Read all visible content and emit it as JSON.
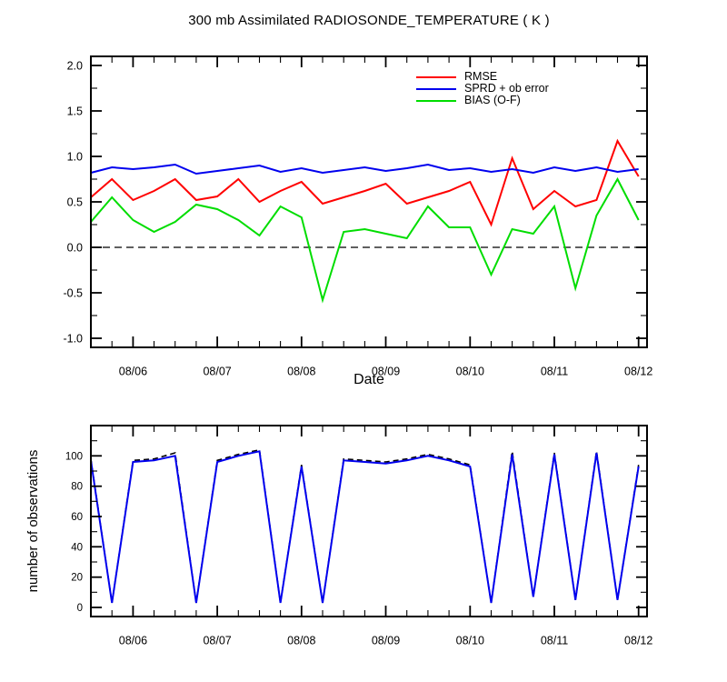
{
  "chart_data": [
    {
      "type": "line",
      "title": "300 mb Assimilated RADIOSONDE_TEMPERATURE ( K )",
      "xlabel": "Date",
      "ylabel": "",
      "xlim": [
        5.5,
        12.1
      ],
      "ylim": [
        -1.1,
        2.1
      ],
      "x_tick_values": [
        6,
        7,
        8,
        9,
        10,
        11,
        12
      ],
      "x_tick_labels": [
        "08/06",
        "08/07",
        "08/08",
        "08/09",
        "08/10",
        "08/11",
        "08/12"
      ],
      "x_minor_step": 0.25,
      "y_tick_values": [
        2.0,
        1.5,
        1.0,
        0.5,
        0.0,
        -0.5,
        -1.0
      ],
      "y_tick_labels": [
        "2.0",
        "1.5",
        "1.0",
        "0.5",
        "0.0",
        "-0.5",
        "-1.0"
      ],
      "y_minor_step": 0.25,
      "refline": 0.0,
      "legend_position": "top-right-inside",
      "x": [
        5.5,
        5.75,
        6,
        6.25,
        6.5,
        6.75,
        7,
        7.25,
        7.5,
        7.75,
        8,
        8.25,
        8.5,
        8.75,
        9,
        9.25,
        9.5,
        9.75,
        10,
        10.25,
        10.5,
        10.75,
        11,
        11.25,
        11.5,
        11.75,
        12
      ],
      "series": [
        {
          "name": "RMSE",
          "color": "#ff0000",
          "style": "solid",
          "values": [
            0.55,
            0.75,
            0.52,
            0.62,
            0.75,
            0.52,
            0.56,
            0.75,
            0.5,
            0.62,
            0.72,
            0.48,
            0.55,
            0.62,
            0.7,
            0.48,
            0.55,
            0.62,
            0.72,
            0.25,
            0.98,
            0.42,
            0.62,
            0.45,
            0.52,
            1.17,
            0.78
          ]
        },
        {
          "name": "SPRD + ob error",
          "color": "#0000ee",
          "style": "solid",
          "values": [
            0.82,
            0.88,
            0.86,
            0.88,
            0.91,
            0.81,
            0.84,
            0.87,
            0.9,
            0.83,
            0.87,
            0.82,
            0.85,
            0.88,
            0.84,
            0.87,
            0.91,
            0.85,
            0.87,
            0.83,
            0.86,
            0.82,
            0.88,
            0.84,
            0.88,
            0.83,
            0.86
          ]
        },
        {
          "name": "BIAS (O-F)",
          "color": "#00dd00",
          "style": "solid",
          "values": [
            0.28,
            0.55,
            0.3,
            0.17,
            0.28,
            0.47,
            0.42,
            0.3,
            0.13,
            0.45,
            0.33,
            -0.58,
            0.17,
            0.2,
            0.15,
            0.1,
            0.45,
            0.22,
            0.22,
            -0.3,
            0.2,
            0.15,
            0.45,
            -0.45,
            0.35,
            0.75,
            0.3
          ]
        }
      ]
    },
    {
      "type": "line",
      "title": "",
      "xlabel": "",
      "ylabel": "number of observations",
      "xlim": [
        5.5,
        12.1
      ],
      "ylim": [
        -6,
        120
      ],
      "x_tick_values": [
        6,
        7,
        8,
        9,
        10,
        11,
        12
      ],
      "x_tick_labels": [
        "08/06",
        "08/07",
        "08/08",
        "08/09",
        "08/10",
        "08/11",
        "08/12"
      ],
      "x_minor_step": 0.25,
      "y_tick_values": [
        100,
        80,
        60,
        40,
        20,
        0
      ],
      "y_tick_labels": [
        "100",
        "80",
        "60",
        "40",
        "20",
        "0"
      ],
      "y_minor_step": 10,
      "x": [
        5.5,
        5.75,
        6,
        6.25,
        6.5,
        6.75,
        7,
        7.25,
        7.5,
        7.75,
        8,
        8.25,
        8.5,
        8.75,
        9,
        9.25,
        9.5,
        9.75,
        10,
        10.25,
        10.5,
        10.75,
        11,
        11.25,
        11.5,
        11.75,
        12
      ],
      "series": [
        {
          "name": "obs-count-dashed-black",
          "color": "#000000",
          "style": "dashed",
          "values": [
            98,
            3,
            97,
            98,
            102,
            3,
            97,
            101,
            104,
            3,
            94,
            3,
            98,
            97,
            96,
            98,
            101,
            98,
            94,
            3,
            103,
            7,
            102,
            5,
            103,
            5,
            94
          ]
        },
        {
          "name": "obs-count-solid-blue",
          "color": "#0000ee",
          "style": "solid",
          "values": [
            97,
            3,
            96,
            97,
            100,
            3,
            96,
            100,
            103,
            3,
            93,
            3,
            97,
            96,
            95,
            97,
            100,
            97,
            93,
            3,
            101,
            7,
            101,
            5,
            102,
            5,
            93
          ]
        }
      ]
    }
  ]
}
